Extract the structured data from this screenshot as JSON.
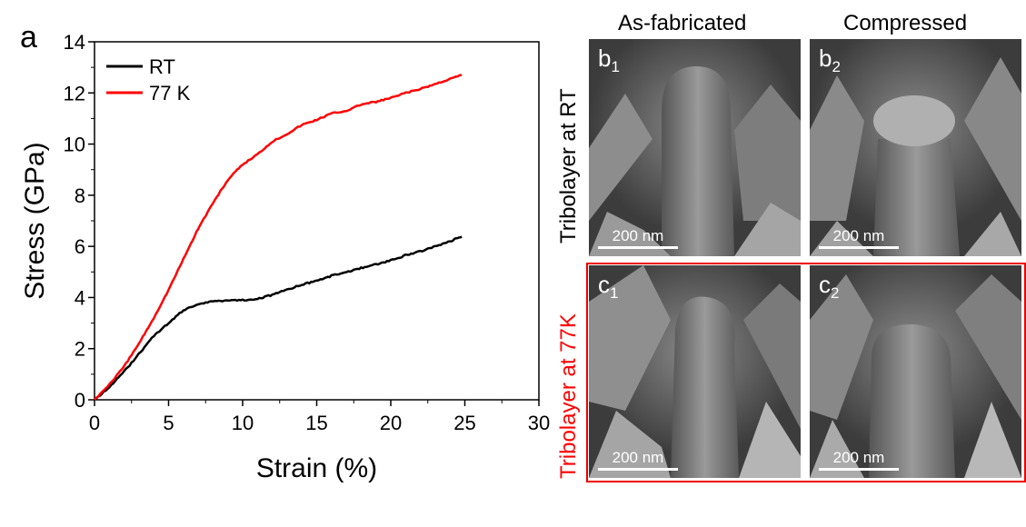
{
  "panel_a_label": "a",
  "chart_data": {
    "type": "line",
    "xlabel": "Strain (%)",
    "ylabel": "Stress (GPa)",
    "xlim": [
      0,
      30
    ],
    "ylim": [
      0,
      14
    ],
    "xticks": [
      "0",
      "5",
      "10",
      "15",
      "20",
      "25",
      "30"
    ],
    "yticks": [
      "0",
      "2",
      "4",
      "6",
      "8",
      "10",
      "12",
      "14"
    ],
    "legend_position": "top-left",
    "grid": false,
    "series": [
      {
        "name": "RT",
        "color": "#000000",
        "x": [
          0,
          1,
          2,
          3,
          4,
          5,
          6,
          7,
          8,
          9,
          10,
          11,
          12,
          13,
          14,
          15,
          16,
          17,
          18,
          19,
          20,
          21,
          22,
          23,
          24,
          24.8
        ],
        "y": [
          0,
          0.5,
          1.1,
          1.8,
          2.5,
          3.0,
          3.5,
          3.75,
          3.85,
          3.9,
          3.9,
          3.95,
          4.1,
          4.3,
          4.5,
          4.65,
          4.85,
          5.0,
          5.15,
          5.3,
          5.45,
          5.65,
          5.8,
          6.0,
          6.2,
          6.4
        ]
      },
      {
        "name": "77 K",
        "color": "#ff0000",
        "x": [
          0,
          1,
          2,
          3,
          4,
          5,
          6,
          7,
          8,
          9,
          10,
          11,
          12,
          13,
          14,
          15,
          16,
          17,
          18,
          19,
          20,
          21,
          22,
          23,
          24,
          24.8
        ],
        "y": [
          0,
          0.6,
          1.3,
          2.2,
          3.2,
          4.3,
          5.5,
          6.7,
          7.7,
          8.6,
          9.2,
          9.6,
          10.1,
          10.4,
          10.75,
          10.95,
          11.2,
          11.3,
          11.55,
          11.65,
          11.8,
          12.0,
          12.15,
          12.35,
          12.55,
          12.7
        ]
      }
    ]
  },
  "images": {
    "col_headers": [
      "As-fabricated",
      "Compressed"
    ],
    "row_headers": [
      "Tribolayer at RT",
      "Tribolayer at 77K"
    ],
    "row_colors": [
      "#000000",
      "#ff0000"
    ],
    "panels": [
      {
        "letter": "b",
        "sub": "1",
        "scale": "200 nm"
      },
      {
        "letter": "b",
        "sub": "2",
        "scale": "200 nm"
      },
      {
        "letter": "c",
        "sub": "1",
        "scale": "200 nm"
      },
      {
        "letter": "c",
        "sub": "2",
        "scale": "200 nm"
      }
    ]
  }
}
